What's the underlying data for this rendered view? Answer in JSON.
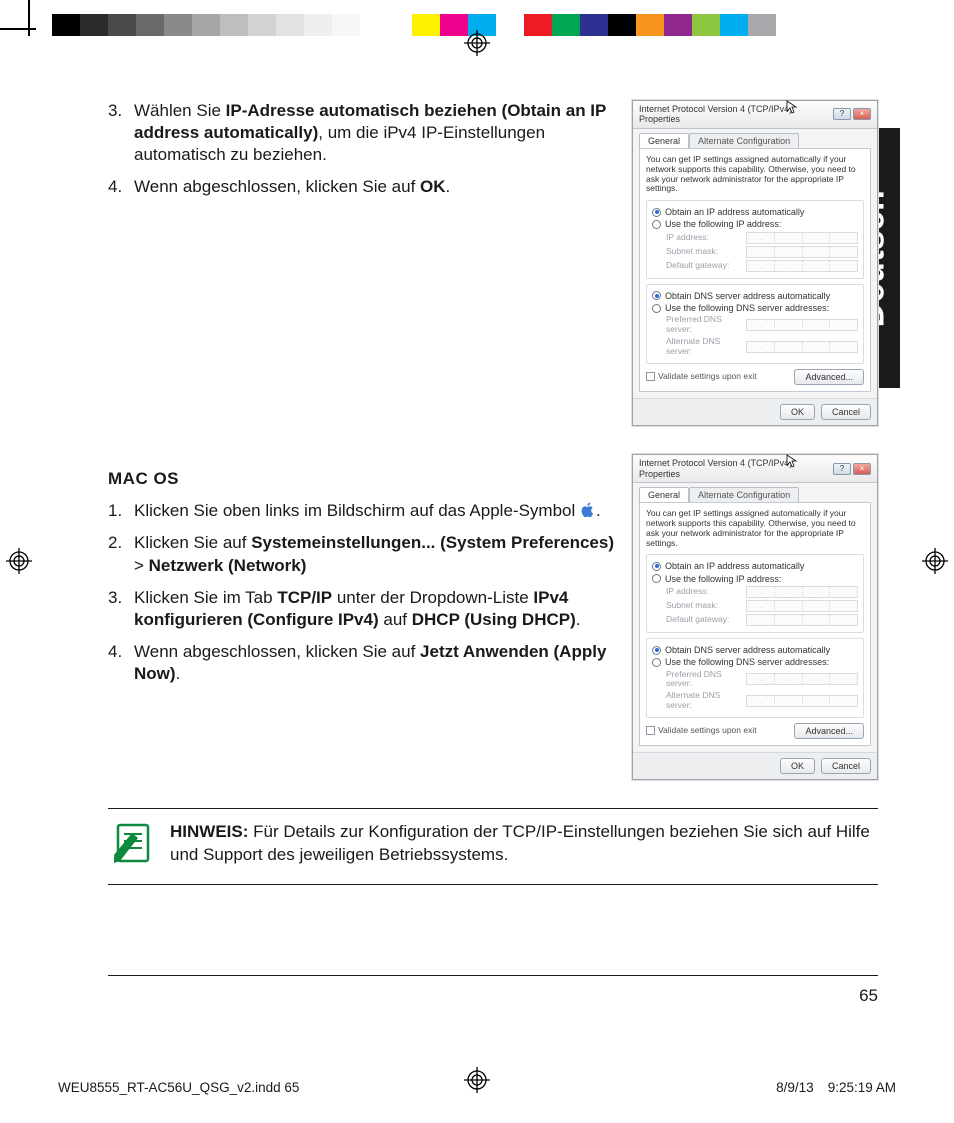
{
  "print": {
    "grays": [
      "#000000",
      "#2b2b2b",
      "#4a4a4a",
      "#6a6a6a",
      "#8a8a8a",
      "#a6a6a6",
      "#bebebe",
      "#d2d2d2",
      "#e2e2e2",
      "#efefef",
      "#f7f7f7",
      "#ffffff"
    ],
    "colors": [
      "#fff200",
      "#ec008c",
      "#00aeef",
      "#ffffff",
      "#ed1c24",
      "#00a651",
      "#2e3192",
      "#000000",
      "#f7941d",
      "#92278f",
      "#8dc63f",
      "#00adef",
      "#a7a9ac"
    ]
  },
  "side_tab": "Deutsch",
  "section1": {
    "items": [
      {
        "num": "3.",
        "pre": "Wählen Sie ",
        "bold": "IP-Adresse automatisch beziehen (Obtain an IP address automatically)",
        "post": ", um die iPv4 IP-Einstellungen automatisch zu beziehen."
      },
      {
        "num": "4.",
        "pre": "Wenn abgeschlossen, klicken Sie auf ",
        "bold": "OK",
        "post": "."
      }
    ]
  },
  "macos_heading": "MAC OS",
  "section2": {
    "items": [
      {
        "num": "1.",
        "html": "Klicken Sie oben links im Bildschirm auf das Apple-Symbol {APPLE}."
      },
      {
        "num": "2.",
        "pre": "Klicken Sie auf ",
        "bold": "Systemeinstellungen... (System Preferences)",
        "mid": " > ",
        "bold2": "Netzwerk (Network)",
        "post": ""
      },
      {
        "num": "3.",
        "pre": "Klicken Sie im Tab ",
        "bold": "TCP/IP",
        "mid": " unter der Dropdown-Liste ",
        "bold2": "IPv4 konfigurieren (Configure IPv4)",
        "mid2": " auf ",
        "bold3": "DHCP (Using DHCP)",
        "post": "."
      },
      {
        "num": "4.",
        "pre": "Wenn abgeschlossen, klicken Sie auf ",
        "bold": "Jetzt Anwenden (Apply Now)",
        "post": "."
      }
    ]
  },
  "dialog": {
    "title": "Internet Protocol Version 4 (TCP/IPv4) Properties",
    "tab_general": "General",
    "tab_alt": "Alternate Configuration",
    "desc": "You can get IP settings assigned automatically if your network supports this capability. Otherwise, you need to ask your network administrator for the appropriate IP settings.",
    "r1": "Obtain an IP address automatically",
    "r2": "Use the following IP address:",
    "f_ip": "IP address:",
    "f_mask": "Subnet mask:",
    "f_gw": "Default gateway:",
    "r3": "Obtain DNS server address automatically",
    "r4": "Use the following DNS server addresses:",
    "f_dns1": "Preferred DNS server:",
    "f_dns2": "Alternate DNS server:",
    "chk": "Validate settings upon exit",
    "btn_adv": "Advanced...",
    "btn_ok": "OK",
    "btn_cancel": "Cancel"
  },
  "note": {
    "label": "HINWEIS:",
    "text": "Für Details zur Konfiguration der TCP/IP-Einstellungen beziehen Sie sich auf Hilfe und Support des jeweiligen Betriebssystems."
  },
  "page_number": "65",
  "slug_file": "WEU8555_RT-AC56U_QSG_v2.indd   65",
  "slug_date": "8/9/13",
  "slug_time": "9:25:19 AM"
}
